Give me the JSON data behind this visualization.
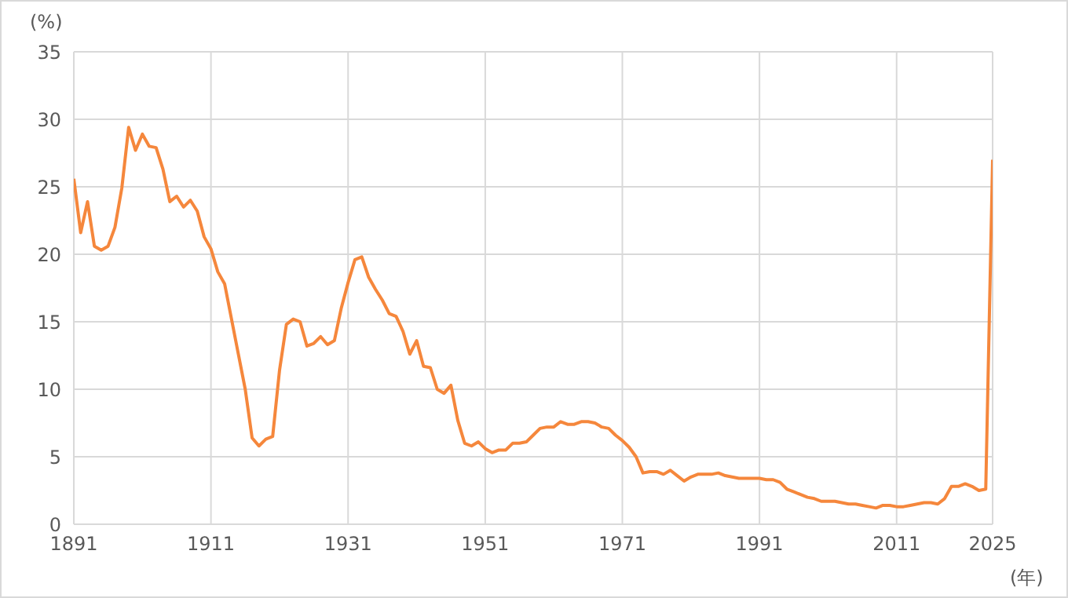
{
  "chart_data": {
    "type": "line",
    "xlabel": "(年)",
    "ylabel": "(%)",
    "x": [
      1891,
      1892,
      1893,
      1894,
      1895,
      1896,
      1897,
      1898,
      1899,
      1900,
      1901,
      1902,
      1903,
      1904,
      1905,
      1906,
      1907,
      1908,
      1909,
      1910,
      1911,
      1912,
      1913,
      1914,
      1915,
      1916,
      1917,
      1918,
      1919,
      1920,
      1921,
      1922,
      1923,
      1924,
      1925,
      1926,
      1927,
      1928,
      1929,
      1930,
      1931,
      1932,
      1933,
      1934,
      1935,
      1936,
      1937,
      1938,
      1939,
      1940,
      1941,
      1942,
      1943,
      1944,
      1945,
      1946,
      1947,
      1948,
      1949,
      1950,
      1951,
      1952,
      1953,
      1954,
      1955,
      1956,
      1957,
      1958,
      1959,
      1960,
      1961,
      1962,
      1963,
      1964,
      1965,
      1966,
      1967,
      1968,
      1969,
      1970,
      1971,
      1972,
      1973,
      1974,
      1975,
      1976,
      1977,
      1978,
      1979,
      1980,
      1981,
      1982,
      1983,
      1984,
      1985,
      1986,
      1987,
      1988,
      1989,
      1990,
      1991,
      1992,
      1993,
      1994,
      1995,
      1996,
      1997,
      1998,
      1999,
      2000,
      2001,
      2002,
      2003,
      2004,
      2005,
      2006,
      2007,
      2008,
      2009,
      2010,
      2011,
      2012,
      2013,
      2014,
      2015,
      2016,
      2017,
      2018,
      2019,
      2020,
      2021,
      2022,
      2023,
      2024,
      2025
    ],
    "series": [
      {
        "color": "#f5873c",
        "values": [
          25.6,
          21.6,
          23.9,
          20.6,
          20.3,
          20.6,
          22.0,
          24.9,
          29.4,
          27.7,
          28.9,
          28.0,
          27.9,
          26.3,
          23.9,
          24.3,
          23.5,
          24.0,
          23.2,
          21.3,
          20.4,
          18.7,
          17.8,
          15.2,
          12.6,
          10.0,
          6.4,
          5.8,
          6.3,
          6.5,
          11.4,
          14.8,
          15.2,
          15.0,
          13.2,
          13.4,
          13.9,
          13.3,
          13.6,
          16.0,
          17.9,
          19.6,
          19.8,
          18.3,
          17.4,
          16.6,
          15.6,
          15.4,
          14.3,
          12.6,
          13.6,
          11.7,
          11.6,
          10.0,
          9.7,
          10.3,
          7.7,
          6.0,
          5.8,
          6.1,
          5.6,
          5.3,
          5.5,
          5.5,
          6.0,
          6.0,
          6.1,
          6.6,
          7.1,
          7.2,
          7.2,
          7.6,
          7.4,
          7.4,
          7.6,
          7.6,
          7.5,
          7.2,
          7.1,
          6.6,
          6.2,
          5.7,
          5.0,
          3.8,
          3.9,
          3.9,
          3.7,
          4.0,
          3.6,
          3.2,
          3.5,
          3.7,
          3.7,
          3.7,
          3.8,
          3.6,
          3.5,
          3.4,
          3.4,
          3.4,
          3.4,
          3.3,
          3.3,
          3.1,
          2.6,
          2.4,
          2.2,
          2.0,
          1.9,
          1.7,
          1.7,
          1.7,
          1.6,
          1.5,
          1.5,
          1.4,
          1.3,
          1.2,
          1.4,
          1.4,
          1.3,
          1.3,
          1.4,
          1.5,
          1.6,
          1.6,
          1.5,
          1.9,
          2.8,
          2.8,
          3.0,
          2.8,
          2.5,
          2.6,
          27.0
        ]
      }
    ],
    "xlim": [
      1891,
      2025
    ],
    "xticks": [
      1891,
      1911,
      1931,
      1951,
      1971,
      1991,
      2011,
      2025
    ],
    "ylim": [
      0,
      35
    ],
    "yticks": [
      0,
      5,
      10,
      15,
      20,
      25,
      30,
      35
    ],
    "grid": true,
    "legend": false,
    "marker": "none",
    "line_style": "solid"
  }
}
